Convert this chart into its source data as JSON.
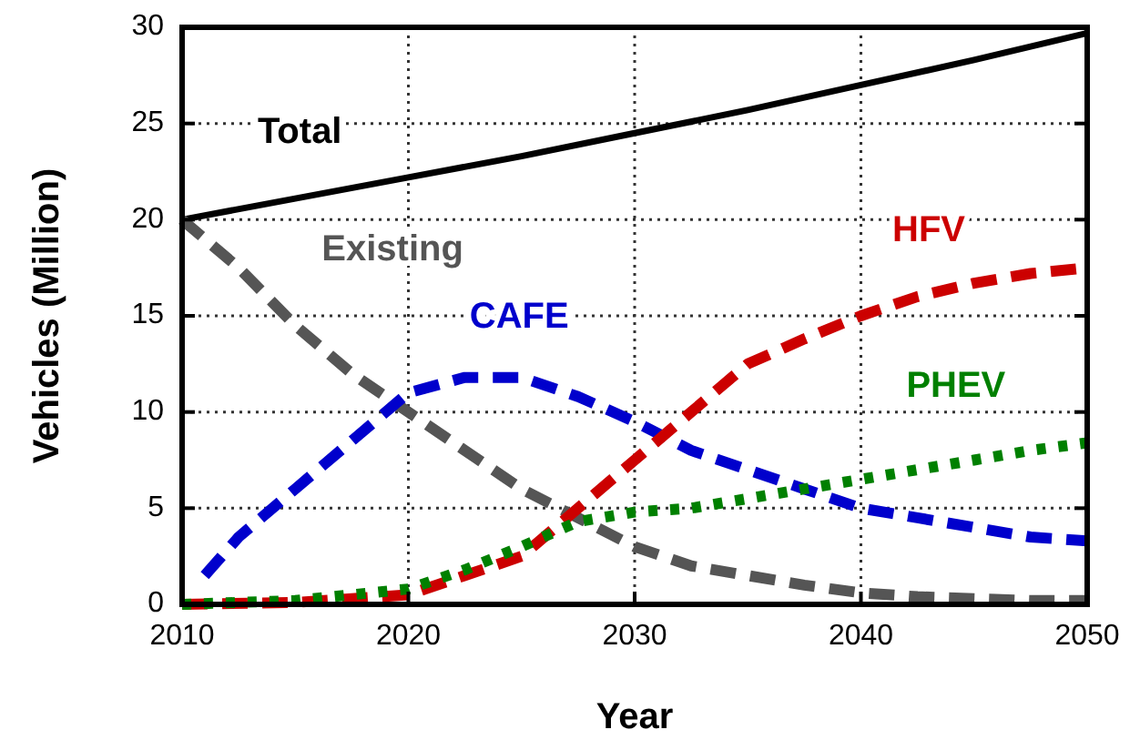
{
  "chart_data": {
    "type": "line",
    "xlabel": "Year",
    "ylabel": "Vehicles (Million)",
    "xlim": [
      2010,
      2050
    ],
    "xticks": [
      2010,
      2020,
      2030,
      2040,
      2050
    ],
    "ylim": [
      0,
      30
    ],
    "yticks": [
      0,
      5,
      10,
      15,
      20,
      25,
      30
    ],
    "grid": true,
    "marker": "none",
    "series": [
      {
        "name": "Total",
        "color": "#000000",
        "line_style": "solid",
        "x": [
          2010,
          2015,
          2020,
          2025,
          2030,
          2035,
          2040,
          2045,
          2050
        ],
        "values": [
          20,
          21.1,
          22.2,
          23.3,
          24.5,
          25.7,
          27,
          28.3,
          29.7
        ]
      },
      {
        "name": "Existing",
        "color": "#555555",
        "line_style": "dashed",
        "x": [
          2010,
          2012.5,
          2015,
          2017.5,
          2020,
          2022.5,
          2025,
          2027.5,
          2030,
          2032.5,
          2035,
          2037.5,
          2040,
          2042.5,
          2045,
          2047.5,
          2050
        ],
        "values": [
          20,
          17.5,
          14.5,
          12,
          10,
          8,
          6,
          4.5,
          3,
          2,
          1.5,
          1,
          0.6,
          0.4,
          0.3,
          0.2,
          0.2
        ]
      },
      {
        "name": "CAFE",
        "color": "#0000cc",
        "line_style": "dashed",
        "x": [
          2011,
          2012.5,
          2015,
          2017.5,
          2020,
          2022.5,
          2025,
          2027.5,
          2030,
          2032.5,
          2035,
          2037.5,
          2040,
          2042.5,
          2045,
          2047.5,
          2050
        ],
        "values": [
          1.5,
          3.5,
          6,
          8.5,
          11,
          11.8,
          11.8,
          10.8,
          9.5,
          8,
          7,
          6,
          5,
          4.5,
          4,
          3.5,
          3.3
        ]
      },
      {
        "name": "HFV",
        "color": "#cc0000",
        "line_style": "dashed",
        "x": [
          2010,
          2015,
          2020,
          2022.5,
          2025,
          2027.5,
          2030,
          2032.5,
          2035,
          2037.5,
          2040,
          2042.5,
          2045,
          2047.5,
          2050
        ],
        "values": [
          0,
          0.1,
          0.5,
          1.5,
          2.5,
          5,
          7.5,
          10,
          12.5,
          13.8,
          15,
          16,
          16.7,
          17.2,
          17.5
        ]
      },
      {
        "name": "PHEV",
        "color": "#008000",
        "line_style": "dotted",
        "x": [
          2010,
          2015,
          2020,
          2022.5,
          2025,
          2027.5,
          2030,
          2032.5,
          2035,
          2037.5,
          2040,
          2042.5,
          2045,
          2047.5,
          2050
        ],
        "values": [
          0,
          0.2,
          0.8,
          1.8,
          3,
          4.3,
          4.8,
          5,
          5.5,
          6,
          6.5,
          7,
          7.5,
          8,
          8.4
        ]
      }
    ]
  }
}
